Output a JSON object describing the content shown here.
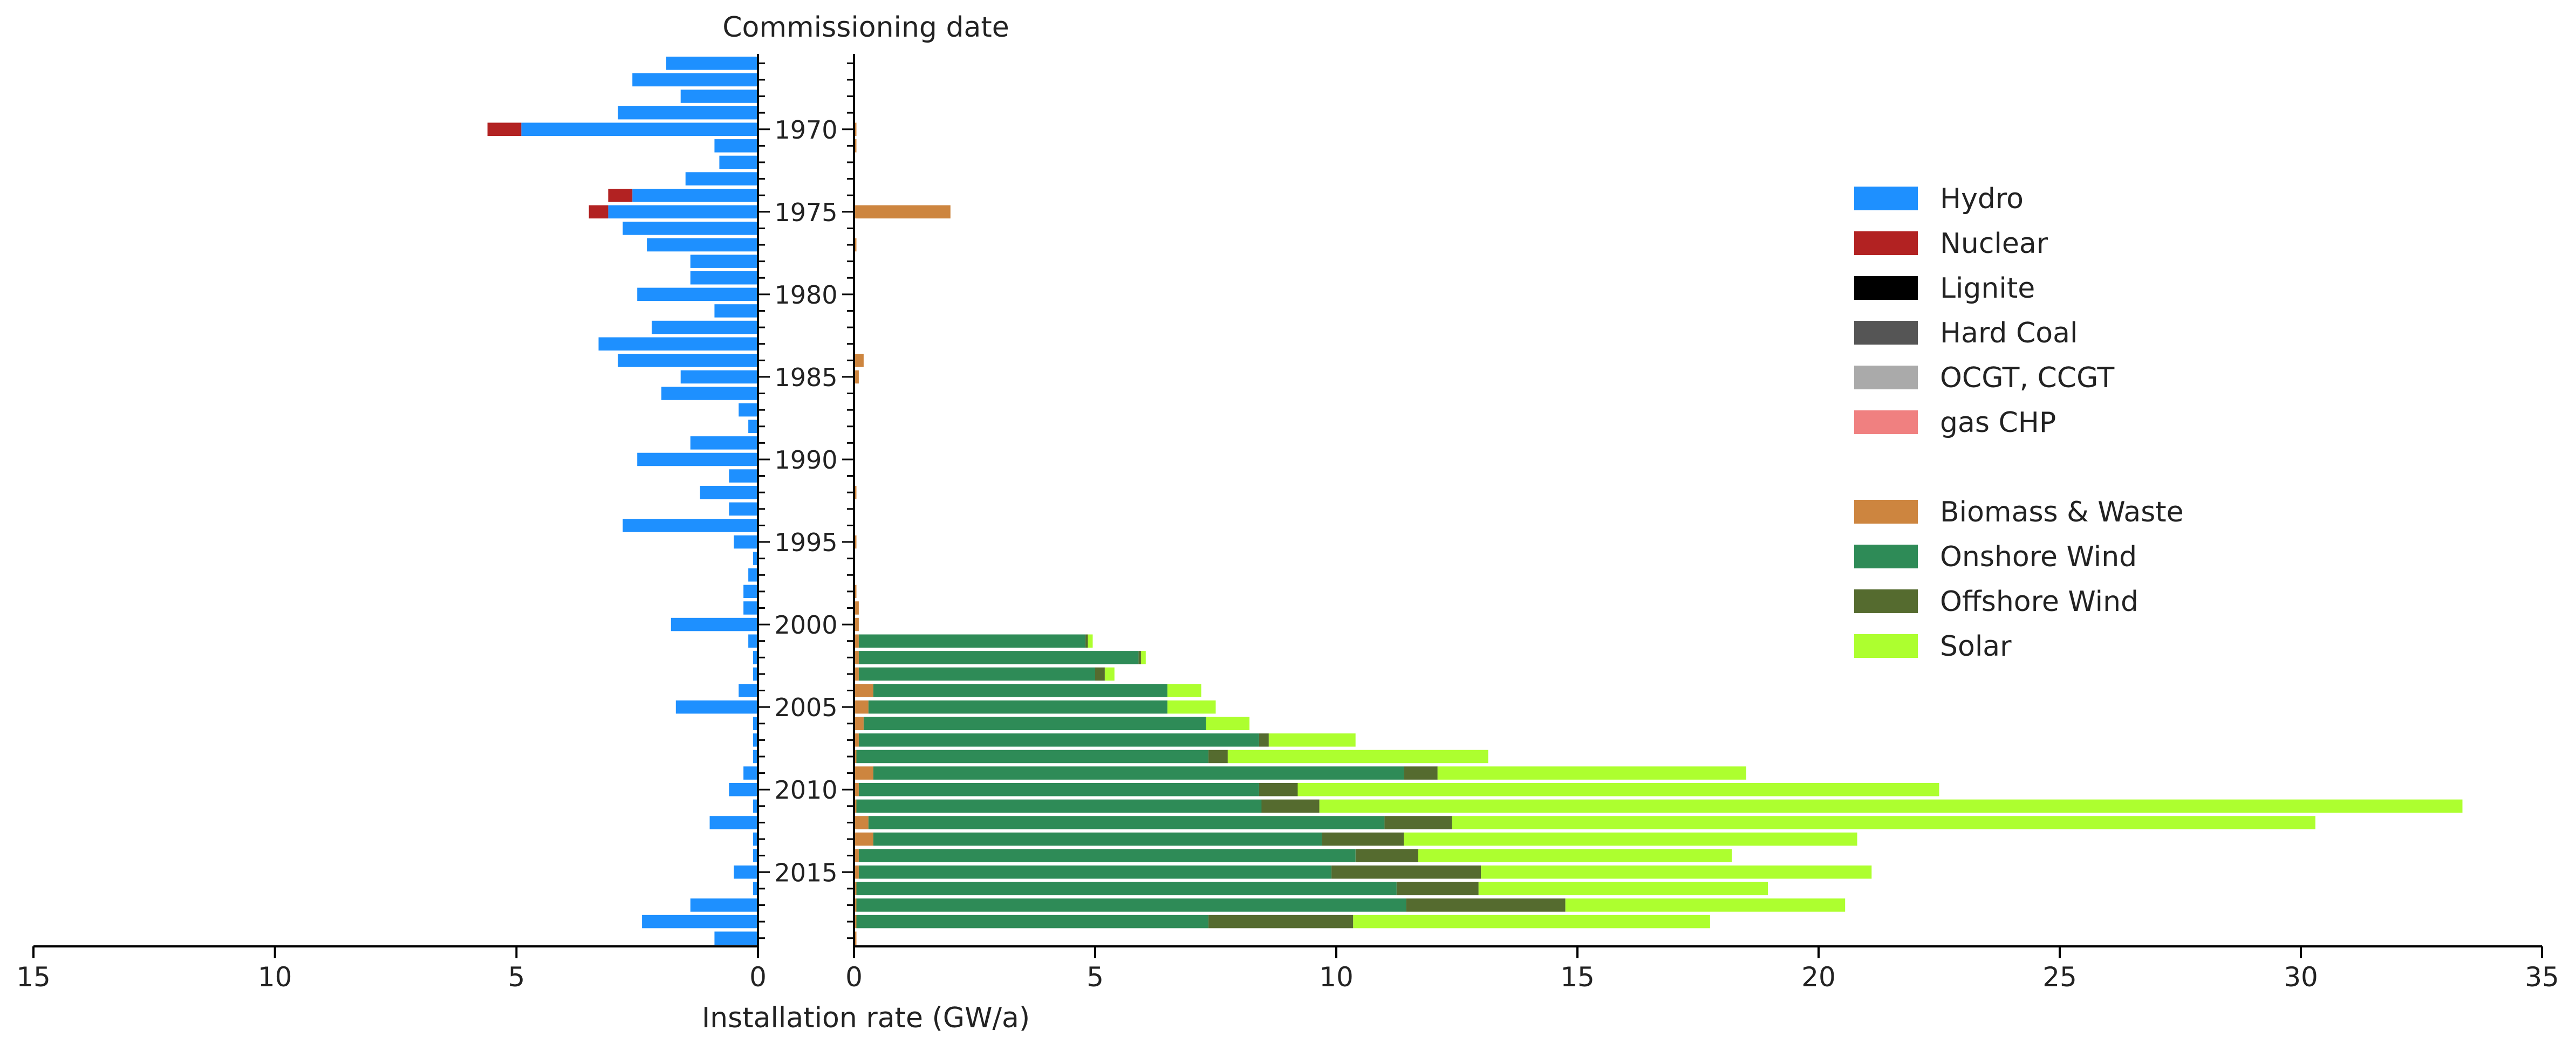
{
  "chart_data": {
    "type": "bar",
    "orientation": "horizontal",
    "title": "Commissioning date",
    "xlabel": "Installation rate (GW/a)",
    "years": [
      1966,
      1967,
      1968,
      1969,
      1970,
      1971,
      1972,
      1973,
      1974,
      1975,
      1976,
      1977,
      1978,
      1979,
      1980,
      1981,
      1982,
      1983,
      1984,
      1985,
      1986,
      1987,
      1988,
      1989,
      1990,
      1991,
      1992,
      1993,
      1994,
      1995,
      1996,
      1997,
      1998,
      1999,
      2000,
      2001,
      2002,
      2003,
      2004,
      2005,
      2006,
      2007,
      2008,
      2009,
      2010,
      2011,
      2012,
      2013,
      2014,
      2015,
      2016,
      2017,
      2018,
      2019
    ],
    "year_tick_labels": [
      "1970",
      "1975",
      "1980",
      "1985",
      "1990",
      "1995",
      "2000",
      "2005",
      "2010",
      "2015"
    ],
    "left_axis": {
      "xlim": [
        15,
        0
      ],
      "ticks": [
        15,
        10,
        5,
        0
      ]
    },
    "right_axis": {
      "xlim": [
        0,
        35
      ],
      "ticks": [
        0,
        5,
        10,
        15,
        20,
        25,
        30,
        35
      ]
    },
    "legend_position": "right",
    "left_series": [
      {
        "name": "Hydro",
        "color": "#1E90FF",
        "values": [
          1.9,
          2.6,
          1.6,
          2.9,
          4.9,
          0.9,
          0.8,
          1.5,
          2.6,
          3.1,
          2.8,
          2.3,
          1.4,
          1.4,
          2.5,
          0.9,
          2.2,
          3.3,
          2.9,
          1.6,
          2.0,
          0.4,
          0.2,
          1.4,
          2.5,
          0.6,
          1.2,
          0.6,
          2.8,
          0.5,
          0.1,
          0.2,
          0.3,
          0.3,
          1.8,
          0.2,
          0.1,
          0.1,
          0.4,
          1.7,
          0.1,
          0.1,
          0.1,
          0.3,
          0.6,
          0.1,
          1.0,
          0.1,
          0.1,
          0.5,
          0.1,
          1.4,
          2.4,
          0.9
        ]
      },
      {
        "name": "Nuclear",
        "color": "#B22222",
        "values": [
          0,
          0,
          0,
          0,
          0.7,
          0,
          0,
          0,
          0.5,
          0.4,
          0,
          0,
          0,
          0,
          0,
          0,
          0,
          0,
          0,
          0,
          0,
          0,
          0,
          0,
          0,
          0,
          0,
          0,
          0,
          0,
          0,
          0,
          0,
          0,
          0,
          0,
          0,
          0,
          0,
          0,
          0,
          0,
          0,
          0,
          0,
          0,
          0,
          0,
          0,
          0,
          0,
          0,
          0,
          0
        ]
      },
      {
        "name": "Lignite",
        "color": "#000000",
        "values": [
          0,
          0,
          0,
          0,
          0,
          0,
          0,
          0,
          0,
          0,
          0,
          0,
          0,
          0,
          0,
          0,
          0,
          0,
          0,
          0,
          0,
          0,
          0,
          0,
          0,
          0,
          0,
          0,
          0,
          0,
          0,
          0,
          0,
          0,
          0,
          0,
          0,
          0,
          0,
          0,
          0,
          0,
          0,
          0,
          0,
          0,
          0,
          0,
          0,
          0,
          0,
          0,
          0,
          0
        ]
      },
      {
        "name": "Hard Coal",
        "color": "#555555",
        "values": [
          0,
          0,
          0,
          0,
          0,
          0,
          0,
          0,
          0,
          0,
          0,
          0,
          0,
          0,
          0,
          0,
          0,
          0,
          0,
          0,
          0,
          0,
          0,
          0,
          0,
          0,
          0,
          0,
          0,
          0,
          0,
          0,
          0,
          0,
          0,
          0,
          0,
          0,
          0,
          0,
          0,
          0,
          0,
          0,
          0,
          0,
          0,
          0,
          0,
          0,
          0,
          0,
          0,
          0
        ]
      },
      {
        "name": "OCGT, CCGT",
        "color": "#AAAAAA",
        "values": [
          0,
          0,
          0,
          0,
          0,
          0,
          0,
          0,
          0,
          0,
          0,
          0,
          0,
          0,
          0,
          0,
          0,
          0,
          0,
          0,
          0,
          0,
          0,
          0,
          0,
          0,
          0,
          0,
          0,
          0,
          0,
          0,
          0,
          0,
          0,
          0,
          0,
          0,
          0,
          0,
          0,
          0,
          0,
          0,
          0,
          0,
          0,
          0,
          0,
          0,
          0,
          0,
          0,
          0
        ]
      },
      {
        "name": "gas CHP",
        "color": "#F08080",
        "values": [
          0,
          0,
          0,
          0,
          0,
          0,
          0,
          0,
          0,
          0,
          0,
          0,
          0,
          0,
          0,
          0,
          0,
          0,
          0,
          0,
          0,
          0,
          0,
          0,
          0,
          0,
          0,
          0,
          0,
          0,
          0,
          0,
          0,
          0,
          0,
          0,
          0,
          0,
          0,
          0,
          0,
          0,
          0,
          0,
          0,
          0,
          0,
          0,
          0,
          0,
          0,
          0,
          0,
          0
        ]
      }
    ],
    "right_series": [
      {
        "name": "Biomass & Waste",
        "color": "#CD853F",
        "values": [
          0,
          0,
          0,
          0,
          0.05,
          0.05,
          0,
          0,
          0,
          2.0,
          0,
          0.05,
          0,
          0,
          0,
          0,
          0,
          0,
          0.2,
          0.1,
          0,
          0,
          0,
          0,
          0,
          0,
          0.05,
          0,
          0,
          0.05,
          0,
          0,
          0.05,
          0.1,
          0.1,
          0.1,
          0.1,
          0.1,
          0.4,
          0.3,
          0.2,
          0.1,
          0.05,
          0.4,
          0.1,
          0.05,
          0.3,
          0.4,
          0.1,
          0.1,
          0.05,
          0.05,
          0.05,
          0.05
        ]
      },
      {
        "name": "Onshore Wind",
        "color": "#2E8B57",
        "values": [
          0,
          0,
          0,
          0,
          0,
          0,
          0,
          0,
          0,
          0,
          0,
          0,
          0,
          0,
          0,
          0,
          0,
          0,
          0,
          0,
          0,
          0,
          0,
          0,
          0,
          0,
          0,
          0,
          0,
          0,
          0,
          0,
          0,
          0,
          0,
          4.7,
          5.8,
          4.9,
          6.1,
          6.2,
          7.1,
          8.3,
          7.3,
          11.0,
          8.3,
          8.4,
          10.7,
          9.3,
          10.3,
          9.8,
          11.2,
          11.4,
          7.3,
          0
        ]
      },
      {
        "name": "Offshore Wind",
        "color": "#556B2F",
        "values": [
          0,
          0,
          0,
          0,
          0,
          0,
          0,
          0,
          0,
          0,
          0,
          0,
          0,
          0,
          0,
          0,
          0,
          0,
          0,
          0,
          0,
          0,
          0,
          0,
          0,
          0,
          0,
          0,
          0,
          0,
          0,
          0,
          0,
          0,
          0,
          0.05,
          0.05,
          0.2,
          0,
          0,
          0,
          0.2,
          0.4,
          0.7,
          0.8,
          1.2,
          1.4,
          1.7,
          1.3,
          3.1,
          1.7,
          3.3,
          3.0,
          0
        ]
      },
      {
        "name": "Solar",
        "color": "#ADFF2F",
        "values": [
          0,
          0,
          0,
          0,
          0,
          0,
          0,
          0,
          0,
          0,
          0,
          0,
          0,
          0,
          0,
          0,
          0,
          0,
          0,
          0,
          0,
          0,
          0,
          0,
          0,
          0,
          0,
          0,
          0,
          0,
          0,
          0,
          0,
          0,
          0,
          0.1,
          0.1,
          0.2,
          0.7,
          1.0,
          0.9,
          1.8,
          5.4,
          6.4,
          13.3,
          23.7,
          17.9,
          9.4,
          6.5,
          8.1,
          6.0,
          5.8,
          7.4,
          0
        ]
      }
    ]
  }
}
